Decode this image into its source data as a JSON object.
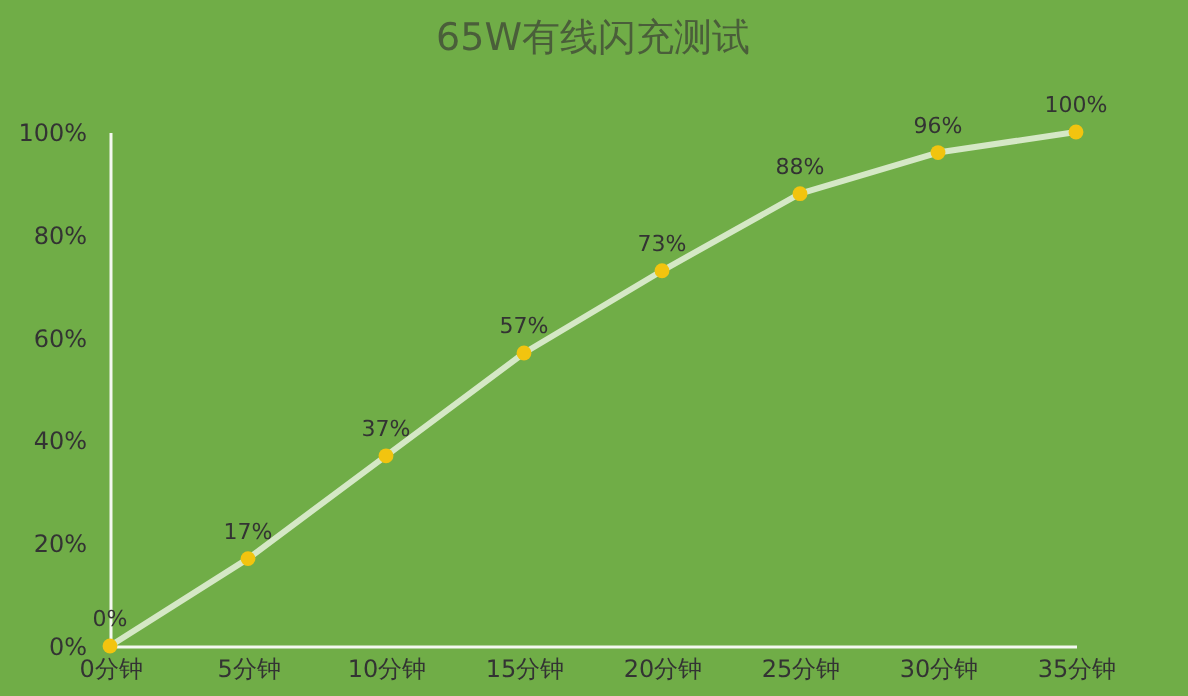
{
  "chart_data": {
    "type": "line",
    "title": "65W有线闪充测试",
    "categories": [
      "0分钟",
      "5分钟",
      "10分钟",
      "15分钟",
      "20分钟",
      "25分钟",
      "30分钟",
      "35分钟"
    ],
    "series": [
      {
        "color": "#d5e8c6",
        "colors": [
          "#f2c40f",
          "#f2c40f",
          "#f2c40f",
          "#f2c40f",
          "#f2c40f",
          "#f2c40f",
          "#f2c40f",
          "#f2c40f"
        ],
        "values": [
          0,
          17,
          37,
          57,
          73,
          88,
          96,
          100
        ],
        "value_labels": [
          "0%",
          "17%",
          "37%",
          "57%",
          "73%",
          "88%",
          "96%",
          "100%"
        ]
      }
    ],
    "ylim": [
      0,
      100
    ],
    "yticks": [
      {
        "value": 0,
        "label": "0%"
      },
      {
        "value": 20,
        "label": "20%"
      },
      {
        "value": 40,
        "label": "40%"
      },
      {
        "value": 60,
        "label": "60%"
      },
      {
        "value": 80,
        "label": "80%"
      },
      {
        "value": 100,
        "label": "100%"
      }
    ],
    "grid": false,
    "marker": "circle",
    "line_style": "solid"
  }
}
